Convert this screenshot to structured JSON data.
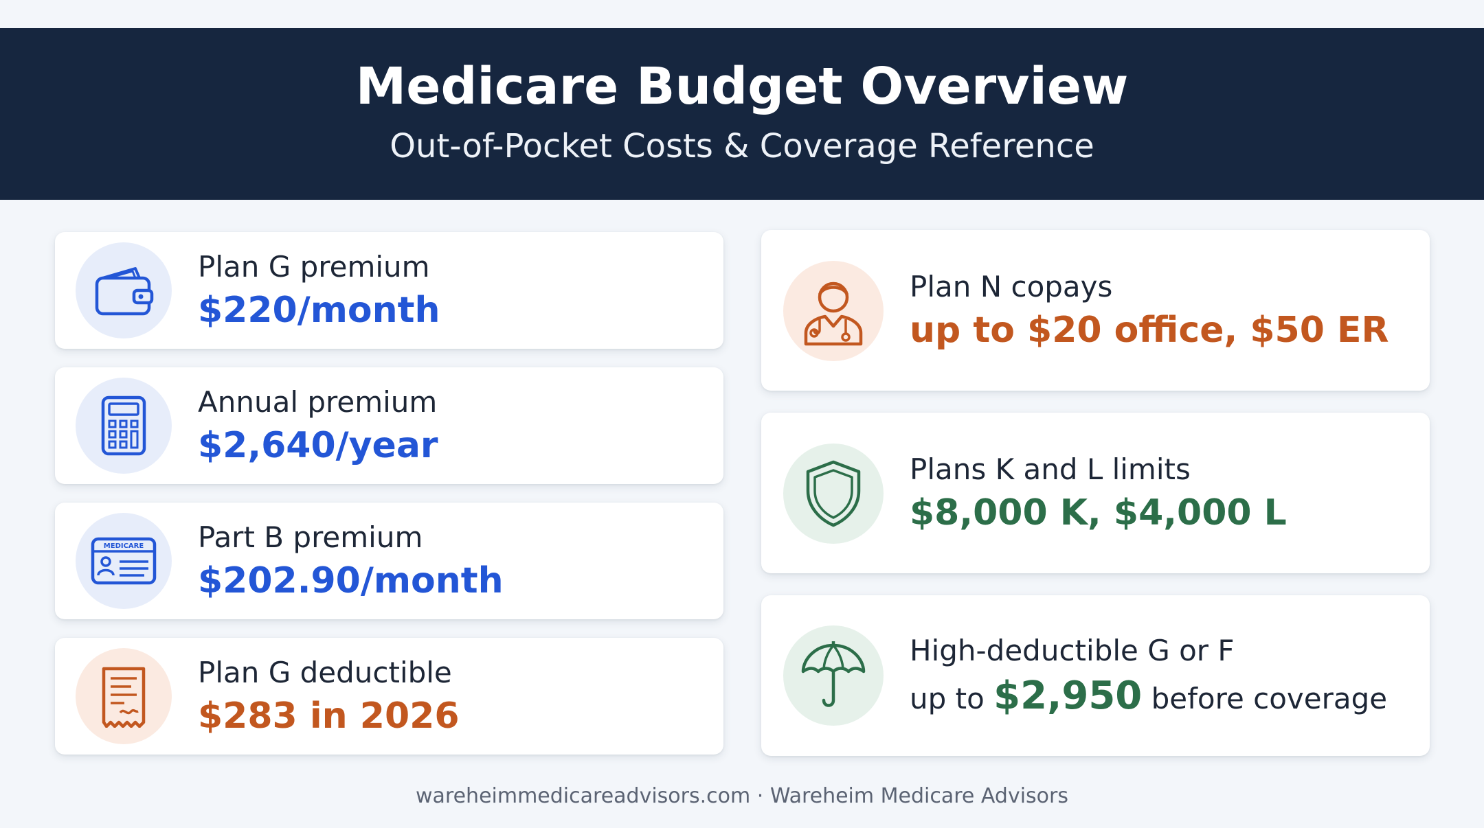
{
  "header": {
    "title": "Medicare Budget Overview",
    "subtitle": "Out-of-Pocket Costs & Coverage Reference"
  },
  "left_cards": [
    {
      "icon": "wallet-icon",
      "label": "Plan G premium",
      "value": "$220/month",
      "accent": "#2356d6"
    },
    {
      "icon": "calculator-icon",
      "label": "Annual premium",
      "value": "$2,640/year",
      "accent": "#2356d6"
    },
    {
      "icon": "medicare-card-icon",
      "icon_text": "MEDICARE",
      "label": "Part B premium",
      "value": "$202.90/month",
      "accent": "#2356d6"
    },
    {
      "icon": "receipt-icon",
      "label": "Plan G deductible",
      "value": "$283 in 2026",
      "accent": "#c2571f"
    }
  ],
  "right_cards": [
    {
      "icon": "doctor-icon",
      "label": "Plan N copays",
      "value": "up to $20 office, $50 ER",
      "accent": "#c2571f"
    },
    {
      "icon": "shield-icon",
      "label": "Plans K and L limits",
      "value": "$8,000 K, $4,000 L",
      "accent": "#2c6e49"
    },
    {
      "icon": "umbrella-icon",
      "label": "High-deductible G or F",
      "value_prefix": "up to ",
      "value_strong": "$2,950",
      "value_suffix": " before coverage",
      "accent": "#2c6e49"
    }
  ],
  "footer": {
    "text": "wareheimmedicareadvisors.com · Wareheim Medicare Advisors"
  }
}
